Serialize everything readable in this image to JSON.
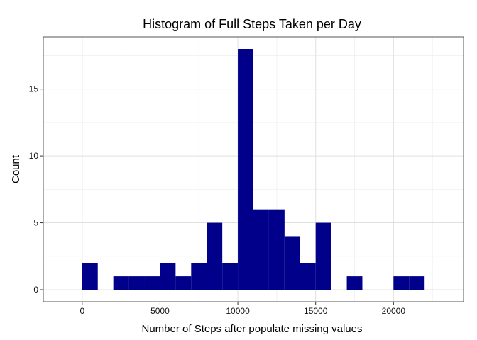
{
  "chart_data": {
    "type": "bar",
    "title": "Histogram of Full Steps Taken per Day",
    "xlabel": "Number of Steps after populate missing values",
    "ylabel": "Count",
    "bin_width": 1000,
    "bins": [
      {
        "x0": 0,
        "x1": 1000,
        "count": 2
      },
      {
        "x0": 2000,
        "x1": 3000,
        "count": 1
      },
      {
        "x0": 3000,
        "x1": 4000,
        "count": 1
      },
      {
        "x0": 4000,
        "x1": 5000,
        "count": 1
      },
      {
        "x0": 5000,
        "x1": 6000,
        "count": 2
      },
      {
        "x0": 6000,
        "x1": 7000,
        "count": 1
      },
      {
        "x0": 7000,
        "x1": 8000,
        "count": 2
      },
      {
        "x0": 8000,
        "x1": 9000,
        "count": 5
      },
      {
        "x0": 9000,
        "x1": 10000,
        "count": 2
      },
      {
        "x0": 10000,
        "x1": 11000,
        "count": 18
      },
      {
        "x0": 11000,
        "x1": 12000,
        "count": 6
      },
      {
        "x0": 12000,
        "x1": 13000,
        "count": 6
      },
      {
        "x0": 13000,
        "x1": 14000,
        "count": 4
      },
      {
        "x0": 14000,
        "x1": 15000,
        "count": 2
      },
      {
        "x0": 15000,
        "x1": 16000,
        "count": 5
      },
      {
        "x0": 17000,
        "x1": 18000,
        "count": 1
      },
      {
        "x0": 20000,
        "x1": 21000,
        "count": 1
      },
      {
        "x0": 21000,
        "x1": 22000,
        "count": 1
      }
    ],
    "xlim": [
      -2500,
      24500
    ],
    "ylim": [
      -0.9,
      18.9
    ],
    "x_ticks": [
      0,
      5000,
      10000,
      15000,
      20000
    ],
    "y_ticks": [
      0,
      5,
      10,
      15
    ],
    "bar_color": "#00008B",
    "grid_major_color": "#E0E0E0",
    "grid_minor_color": "#F2F2F2",
    "grid": true,
    "legend": "none"
  }
}
